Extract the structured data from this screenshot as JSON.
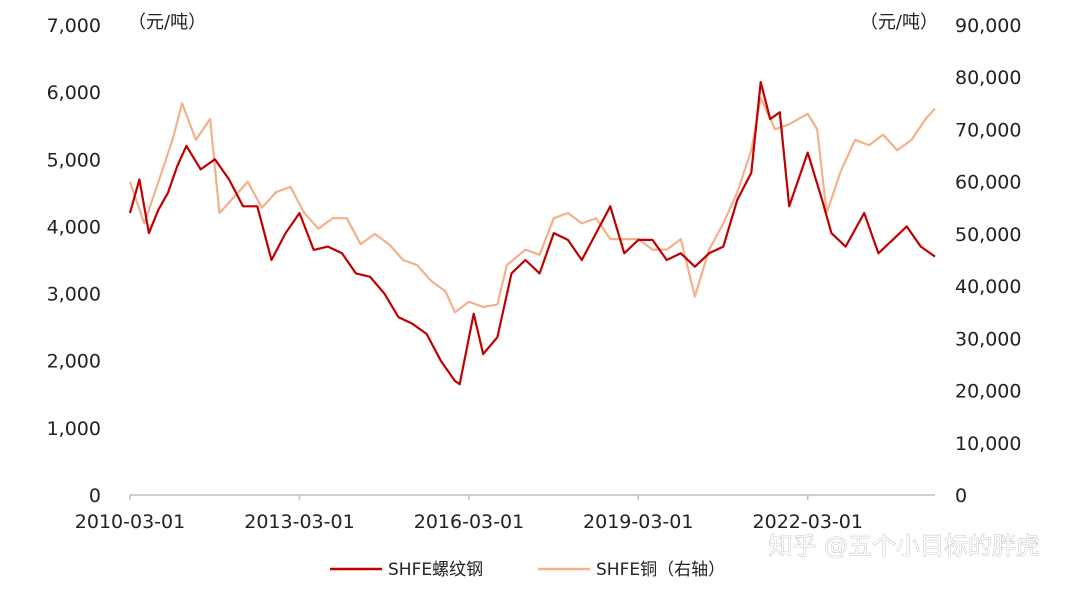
{
  "chart_data": {
    "type": "line",
    "left_axis": {
      "unit": "（元/吨）",
      "ylim": [
        0,
        7000
      ],
      "ticks": [
        "0",
        "1,000",
        "2,000",
        "3,000",
        "4,000",
        "5,000",
        "6,000",
        "7,000"
      ]
    },
    "right_axis": {
      "unit": "（元/吨）",
      "ylim": [
        0,
        90000
      ],
      "ticks": [
        "0",
        "10,000",
        "20,000",
        "30,000",
        "40,000",
        "50,000",
        "60,000",
        "70,000",
        "80,000",
        "90,000"
      ]
    },
    "x_axis": {
      "range": [
        "2010-03-01",
        "2024-06-01"
      ],
      "ticks": [
        "2010-03-01",
        "2013-03-01",
        "2016-03-01",
        "2019-03-01",
        "2022-03-01"
      ]
    },
    "legend_placement": "bottom-center",
    "colors": {
      "rebar": "#c00000",
      "copper": "#f2b18a"
    },
    "series": [
      {
        "name": "SHFE螺纹钢",
        "axis": "left",
        "points": [
          [
            "2010-03-01",
            4200
          ],
          [
            "2010-05-01",
            4700
          ],
          [
            "2010-07-01",
            3900
          ],
          [
            "2010-09-01",
            4250
          ],
          [
            "2010-11-01",
            4500
          ],
          [
            "2011-01-01",
            4900
          ],
          [
            "2011-03-01",
            5200
          ],
          [
            "2011-06-01",
            4850
          ],
          [
            "2011-09-01",
            5000
          ],
          [
            "2011-12-01",
            4700
          ],
          [
            "2012-03-01",
            4300
          ],
          [
            "2012-06-01",
            4300
          ],
          [
            "2012-09-01",
            3500
          ],
          [
            "2012-12-01",
            3900
          ],
          [
            "2013-03-01",
            4200
          ],
          [
            "2013-06-01",
            3650
          ],
          [
            "2013-09-01",
            3700
          ],
          [
            "2013-12-01",
            3600
          ],
          [
            "2014-03-01",
            3300
          ],
          [
            "2014-06-01",
            3250
          ],
          [
            "2014-09-01",
            3000
          ],
          [
            "2014-12-01",
            2650
          ],
          [
            "2015-03-01",
            2550
          ],
          [
            "2015-06-01",
            2400
          ],
          [
            "2015-09-01",
            2000
          ],
          [
            "2015-12-01",
            1700
          ],
          [
            "2016-01-01",
            1650
          ],
          [
            "2016-04-01",
            2700
          ],
          [
            "2016-06-01",
            2100
          ],
          [
            "2016-09-01",
            2350
          ],
          [
            "2016-12-01",
            3300
          ],
          [
            "2017-03-01",
            3500
          ],
          [
            "2017-06-01",
            3300
          ],
          [
            "2017-09-01",
            3900
          ],
          [
            "2017-12-01",
            3800
          ],
          [
            "2018-03-01",
            3500
          ],
          [
            "2018-06-01",
            3900
          ],
          [
            "2018-09-01",
            4300
          ],
          [
            "2018-12-01",
            3600
          ],
          [
            "2019-03-01",
            3800
          ],
          [
            "2019-06-01",
            3800
          ],
          [
            "2019-09-01",
            3500
          ],
          [
            "2019-12-01",
            3600
          ],
          [
            "2020-03-01",
            3400
          ],
          [
            "2020-06-01",
            3600
          ],
          [
            "2020-09-01",
            3700
          ],
          [
            "2020-12-01",
            4400
          ],
          [
            "2021-03-01",
            4800
          ],
          [
            "2021-05-01",
            6150
          ],
          [
            "2021-07-01",
            5600
          ],
          [
            "2021-09-01",
            5700
          ],
          [
            "2021-11-01",
            4300
          ],
          [
            "2022-03-01",
            5100
          ],
          [
            "2022-06-01",
            4400
          ],
          [
            "2022-08-01",
            3900
          ],
          [
            "2022-11-01",
            3700
          ],
          [
            "2023-03-01",
            4200
          ],
          [
            "2023-06-01",
            3600
          ],
          [
            "2023-09-01",
            3800
          ],
          [
            "2023-12-01",
            4000
          ],
          [
            "2024-03-01",
            3700
          ],
          [
            "2024-06-01",
            3550
          ]
        ]
      },
      {
        "name": "SHFE铜（右轴）",
        "axis": "right",
        "points": [
          [
            "2010-03-01",
            60000
          ],
          [
            "2010-06-01",
            52000
          ],
          [
            "2010-09-01",
            60000
          ],
          [
            "2010-12-01",
            68000
          ],
          [
            "2011-02-01",
            75000
          ],
          [
            "2011-05-01",
            68000
          ],
          [
            "2011-08-01",
            72000
          ],
          [
            "2011-10-01",
            54000
          ],
          [
            "2012-01-01",
            57000
          ],
          [
            "2012-04-01",
            60000
          ],
          [
            "2012-07-01",
            55000
          ],
          [
            "2012-10-01",
            58000
          ],
          [
            "2013-01-01",
            59000
          ],
          [
            "2013-04-01",
            54000
          ],
          [
            "2013-07-01",
            51000
          ],
          [
            "2013-10-01",
            53000
          ],
          [
            "2014-01-01",
            53000
          ],
          [
            "2014-04-01",
            48000
          ],
          [
            "2014-07-01",
            50000
          ],
          [
            "2014-10-01",
            48000
          ],
          [
            "2015-01-01",
            45000
          ],
          [
            "2015-04-01",
            44000
          ],
          [
            "2015-07-01",
            41000
          ],
          [
            "2015-10-01",
            39000
          ],
          [
            "2015-12-01",
            35000
          ],
          [
            "2016-03-01",
            37000
          ],
          [
            "2016-06-01",
            36000
          ],
          [
            "2016-09-01",
            36500
          ],
          [
            "2016-11-01",
            44000
          ],
          [
            "2017-03-01",
            47000
          ],
          [
            "2017-06-01",
            46000
          ],
          [
            "2017-09-01",
            53000
          ],
          [
            "2017-12-01",
            54000
          ],
          [
            "2018-03-01",
            52000
          ],
          [
            "2018-06-01",
            53000
          ],
          [
            "2018-09-01",
            49000
          ],
          [
            "2018-12-01",
            49000
          ],
          [
            "2019-03-01",
            49000
          ],
          [
            "2019-06-01",
            47000
          ],
          [
            "2019-09-01",
            47000
          ],
          [
            "2019-12-01",
            49000
          ],
          [
            "2020-03-01",
            38000
          ],
          [
            "2020-06-01",
            47000
          ],
          [
            "2020-09-01",
            52000
          ],
          [
            "2020-12-01",
            58000
          ],
          [
            "2021-03-01",
            66000
          ],
          [
            "2021-05-01",
            76000
          ],
          [
            "2021-08-01",
            70000
          ],
          [
            "2021-11-01",
            71000
          ],
          [
            "2022-03-01",
            73000
          ],
          [
            "2022-05-01",
            70000
          ],
          [
            "2022-07-01",
            54000
          ],
          [
            "2022-10-01",
            62000
          ],
          [
            "2023-01-01",
            68000
          ],
          [
            "2023-04-01",
            67000
          ],
          [
            "2023-07-01",
            69000
          ],
          [
            "2023-10-01",
            66000
          ],
          [
            "2024-01-01",
            68000
          ],
          [
            "2024-04-01",
            72000
          ],
          [
            "2024-06-01",
            74000
          ]
        ]
      }
    ]
  },
  "watermark": "知乎 @五个小目标的胖虎"
}
